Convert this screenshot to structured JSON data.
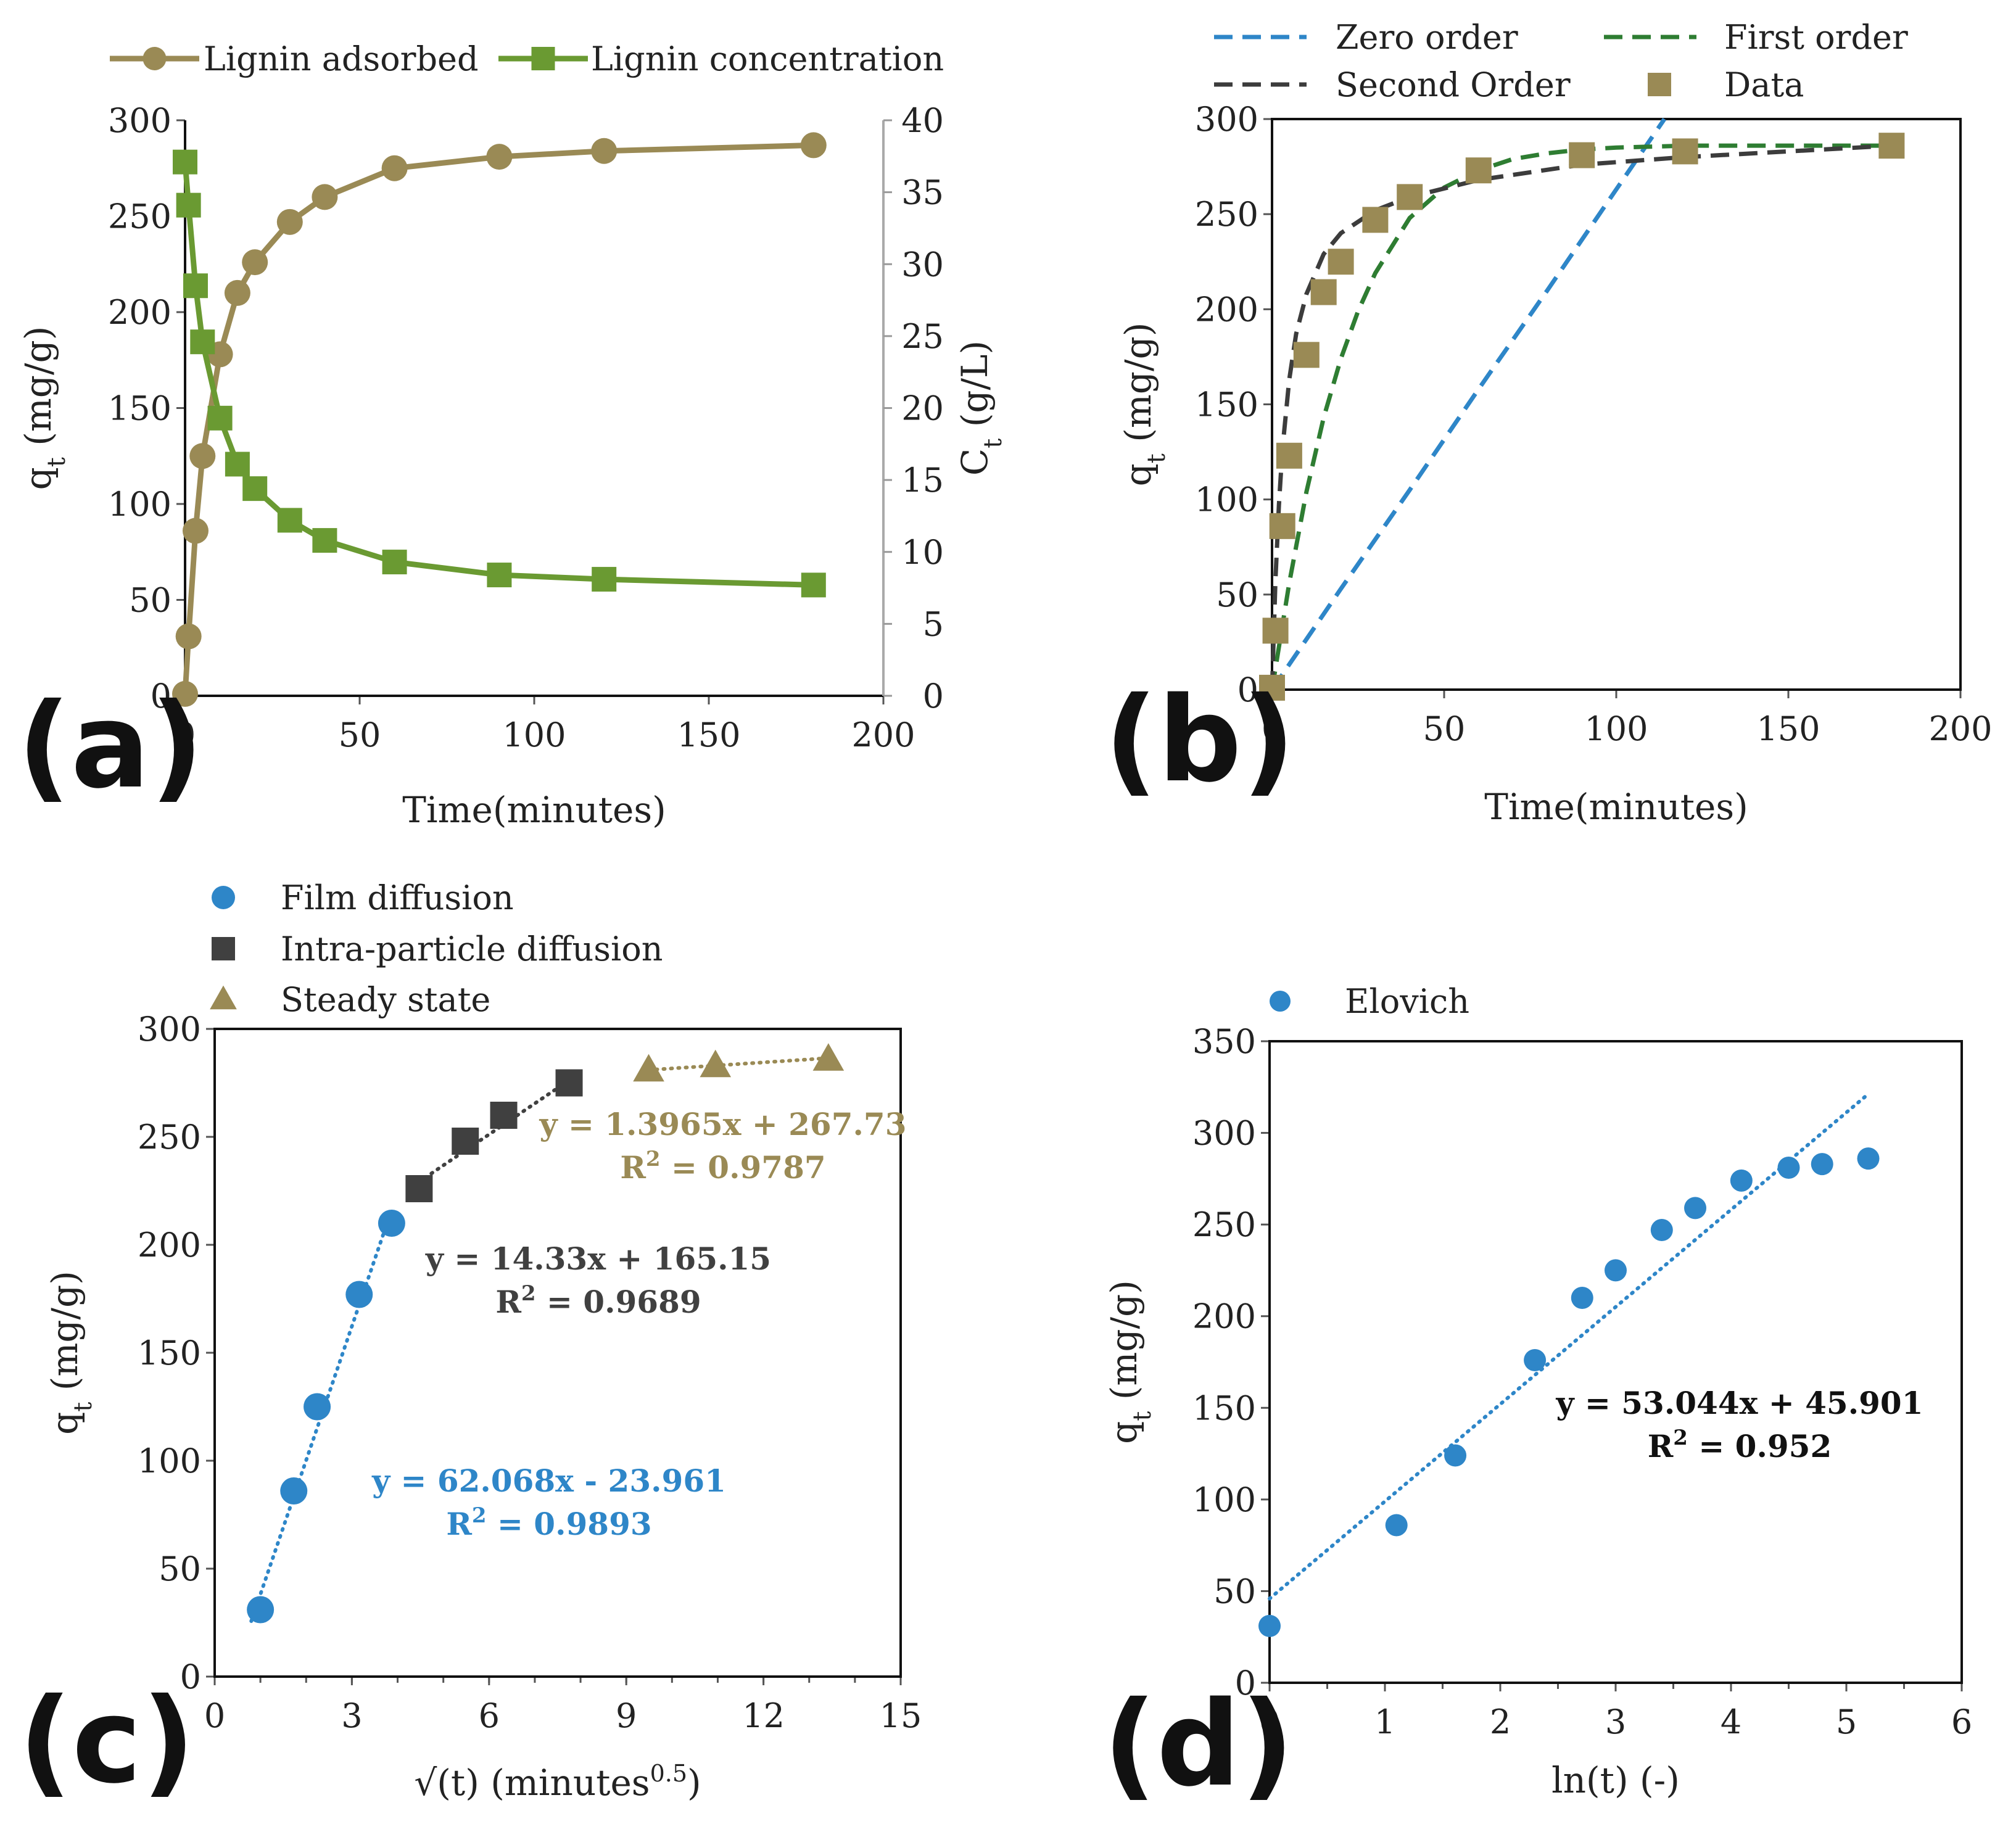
{
  "chart_data": [
    {
      "id": "a",
      "type": "line",
      "panel_label": "(a)",
      "xlabel": "Time(minutes)",
      "ylabel": "q_t (mg/g)",
      "ylabel_base": "q",
      "ylabel_sub": "t",
      "ylabel_unit": "(mg/g)",
      "y2label": "C_t (g/L)",
      "y2label_base": "C",
      "y2label_sub": "t",
      "y2label_unit": "(g/L)",
      "xlim": [
        0,
        200
      ],
      "ylim": [
        0,
        300
      ],
      "y2lim": [
        0,
        40
      ],
      "xticks": [
        0,
        50,
        100,
        150,
        200
      ],
      "yticks": [
        0,
        50,
        100,
        150,
        200,
        250,
        300
      ],
      "y2ticks": [
        0,
        5,
        10,
        15,
        20,
        25,
        30,
        35,
        40
      ],
      "legend_position": "top",
      "series": [
        {
          "name": "Lignin adsorbed",
          "axis": "left",
          "marker": "circle",
          "color": "#9a8a55",
          "x": [
            0,
            1,
            3,
            5,
            10,
            15,
            20,
            30,
            40,
            60,
            90,
            120,
            180
          ],
          "y": [
            1,
            31,
            86,
            125,
            178,
            210,
            226,
            247,
            260,
            275,
            281,
            284,
            287
          ]
        },
        {
          "name": "Lignin concentration",
          "axis": "right",
          "marker": "square",
          "color": "#6a9a32",
          "x": [
            0,
            1,
            3,
            5,
            10,
            15,
            20,
            30,
            40,
            60,
            90,
            120,
            180
          ],
          "y": [
            37.1,
            34.1,
            28.5,
            24.6,
            19.3,
            16.1,
            14.4,
            12.2,
            10.8,
            9.3,
            8.4,
            8.1,
            7.7
          ]
        }
      ]
    },
    {
      "id": "b",
      "type": "scatter",
      "panel_label": "(b)",
      "xlabel": "Time(minutes)",
      "ylabel": "q_t (mg/g)",
      "ylabel_base": "q",
      "ylabel_sub": "t",
      "ylabel_unit": "(mg/g)",
      "xlim": [
        0,
        200
      ],
      "ylim": [
        0,
        300
      ],
      "xticks": [
        0,
        50,
        100,
        150,
        200
      ],
      "yticks": [
        0,
        50,
        100,
        150,
        200,
        250,
        300
      ],
      "legend_position": "top",
      "series": [
        {
          "name": "Zero order",
          "style": "dashed",
          "color": "#2e86c8",
          "x": [
            0,
            20,
            40,
            60,
            80,
            100,
            114
          ],
          "y": [
            0,
            53,
            105,
            158,
            210,
            263,
            300
          ]
        },
        {
          "name": "First order",
          "style": "dashed",
          "color": "#2e7d32",
          "x": [
            0,
            5,
            10,
            15,
            20,
            25,
            30,
            40,
            50,
            60,
            70,
            80,
            90,
            100,
            120,
            150,
            180
          ],
          "y": [
            0,
            56,
            104,
            143,
            174,
            199,
            219,
            248,
            264,
            273,
            279,
            282,
            284,
            285,
            286,
            286,
            286
          ]
        },
        {
          "name": "Second Order",
          "style": "dashed",
          "color": "#3c3c3c",
          "x": [
            0,
            1,
            2,
            3,
            5,
            7,
            10,
            15,
            20,
            30,
            40,
            60,
            90,
            120,
            180
          ],
          "y": [
            0,
            58,
            97,
            126,
            163,
            187,
            208,
            229,
            240,
            252,
            259,
            268,
            276,
            280,
            286
          ]
        },
        {
          "name": "Data",
          "marker": "square",
          "color": "#9a8a55",
          "x": [
            0,
            1,
            3,
            5,
            10,
            15,
            20,
            30,
            40,
            60,
            90,
            120,
            180
          ],
          "y": [
            1,
            31,
            86,
            123,
            176,
            209,
            225,
            247,
            259,
            273,
            281,
            283,
            286
          ]
        }
      ]
    },
    {
      "id": "c",
      "type": "scatter",
      "panel_label": "(c)",
      "xlabel": "√(t) (minutes",
      "xlabel_sup": "0.5",
      "xlabel_close": ")",
      "ylabel": "q_t (mg/g)",
      "ylabel_base": "q",
      "ylabel_sub": "t",
      "ylabel_unit": "(mg/g)",
      "xlim": [
        0,
        15
      ],
      "ylim": [
        0,
        300
      ],
      "xticks": [
        0,
        3,
        6,
        9,
        12,
        15
      ],
      "yticks": [
        0,
        50,
        100,
        150,
        200,
        250,
        300
      ],
      "legend_position": "top-left",
      "series": [
        {
          "name": "Film diffusion",
          "marker": "circle",
          "color": "#2e86c8",
          "x": [
            1.0,
            1.73,
            2.24,
            3.16,
            3.87
          ],
          "y": [
            31,
            86,
            125,
            177,
            210
          ],
          "trend": {
            "x": [
              0.8,
              3.85
            ],
            "slope": 62.068,
            "intercept": -23.961
          },
          "equation": "y = 62.068x - 23.961",
          "r2_base": "R",
          "r2_sup": "2",
          "r2_value": " = 0.9893"
        },
        {
          "name": "Intra-particle diffusion",
          "marker": "square",
          "color": "#404040",
          "x": [
            4.47,
            5.48,
            6.32,
            7.75
          ],
          "y": [
            226,
            248,
            260,
            275
          ],
          "trend": {
            "x": [
              4.47,
              7.75
            ],
            "slope": 14.33,
            "intercept": 165.15
          },
          "equation": "y = 14.33x + 165.15",
          "r2_base": "R",
          "r2_sup": "2",
          "r2_value": " = 0.9689"
        },
        {
          "name": "Steady state",
          "marker": "triangle",
          "color": "#9a8a55",
          "x": [
            9.49,
            10.95,
            13.42
          ],
          "y": [
            281,
            283,
            286
          ],
          "trend": {
            "x": [
              9.49,
              13.42
            ],
            "slope": 1.3965,
            "intercept": 267.73
          },
          "equation": "y = 1.3965x + 267.73",
          "r2_base": "R",
          "r2_sup": "2",
          "r2_value": " = 0.9787"
        }
      ]
    },
    {
      "id": "d",
      "type": "scatter",
      "panel_label": "(d)",
      "xlabel": "ln(t) (-)",
      "ylabel": "q_t (mg/g)",
      "ylabel_base": "q",
      "ylabel_sub": "t",
      "ylabel_unit": "(mg/g)",
      "xlim": [
        0,
        6
      ],
      "ylim": [
        0,
        350
      ],
      "xticks": [
        0,
        1,
        2,
        3,
        4,
        5,
        6
      ],
      "yticks": [
        0,
        50,
        100,
        150,
        200,
        250,
        300,
        350
      ],
      "legend_position": "top-left",
      "series": [
        {
          "name": "Elovich",
          "marker": "circle",
          "color": "#2e86c8",
          "x": [
            0,
            1.1,
            1.61,
            2.3,
            2.71,
            3.0,
            3.4,
            3.69,
            4.09,
            4.5,
            4.79,
            5.19
          ],
          "y": [
            31,
            86,
            124,
            176,
            210,
            225,
            247,
            259,
            274,
            281,
            283,
            286
          ],
          "trend": {
            "x": [
              0,
              5.2
            ],
            "slope": 53.044,
            "intercept": 45.901
          },
          "equation": "y = 53.044x + 45.901",
          "r2_base": "R",
          "r2_sup": "2",
          "r2_value": " = 0.952"
        }
      ]
    }
  ]
}
